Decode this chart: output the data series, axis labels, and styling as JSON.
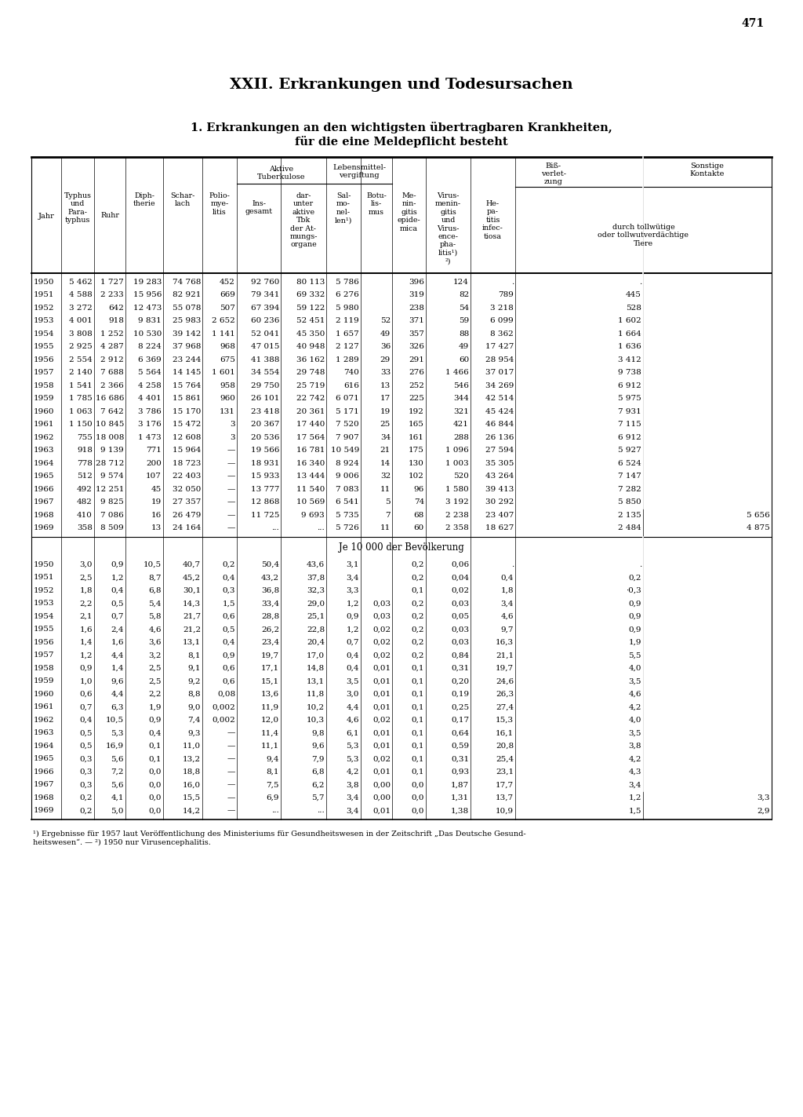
{
  "page_number": "471",
  "main_title": "XXII. Erkrankungen und Todesursachen",
  "subtitle1": "1. Erkrankungen an den wichtigsten übertragbaren Krankheiten,",
  "subtitle2": "für die eine Meldepflicht besteht",
  "data_abs": [
    [
      "1950",
      "5 462",
      "1 727",
      "19 283",
      "74 768",
      "452",
      "92 760",
      "80 113",
      "5 786",
      "",
      "396",
      "124",
      ".",
      ".",
      ""
    ],
    [
      "1951",
      "4 588",
      "2 233",
      "15 956",
      "82 921",
      "669",
      "79 341",
      "69 332",
      "6 276",
      "",
      "319",
      "82",
      "789",
      "445",
      ""
    ],
    [
      "1952",
      "3 272",
      "642",
      "12 473",
      "55 078",
      "507",
      "67 394",
      "59 122",
      "5 980",
      "",
      "238",
      "54",
      "3 218",
      "528",
      ""
    ],
    [
      "1953",
      "4 001",
      "918",
      "9 831",
      "25 983",
      "2 652",
      "60 236",
      "52 451",
      "2 119",
      "52",
      "371",
      "59",
      "6 099",
      "1 602",
      ""
    ],
    [
      "1954",
      "3 808",
      "1 252",
      "10 530",
      "39 142",
      "1 141",
      "52 041",
      "45 350",
      "1 657",
      "49",
      "357",
      "88",
      "8 362",
      "1 664",
      ""
    ],
    [
      "1955",
      "2 925",
      "4 287",
      "8 224",
      "37 968",
      "968",
      "47 015",
      "40 948",
      "2 127",
      "36",
      "326",
      "49",
      "17 427",
      "1 636",
      ""
    ],
    [
      "1956",
      "2 554",
      "2 912",
      "6 369",
      "23 244",
      "675",
      "41 388",
      "36 162",
      "1 289",
      "29",
      "291",
      "60",
      "28 954",
      "3 412",
      ""
    ],
    [
      "1957",
      "2 140",
      "7 688",
      "5 564",
      "14 145",
      "1 601",
      "34 554",
      "29 748",
      "740",
      "33",
      "276",
      "1 466",
      "37 017",
      "9 738",
      ""
    ],
    [
      "1958",
      "1 541",
      "2 366",
      "4 258",
      "15 764",
      "958",
      "29 750",
      "25 719",
      "616",
      "13",
      "252",
      "546",
      "34 269",
      "6 912",
      ""
    ],
    [
      "1959",
      "1 785",
      "16 686",
      "4 401",
      "15 861",
      "960",
      "26 101",
      "22 742",
      "6 071",
      "17",
      "225",
      "344",
      "42 514",
      "5 975",
      ""
    ],
    [
      "1960",
      "1 063",
      "7 642",
      "3 786",
      "15 170",
      "131",
      "23 418",
      "20 361",
      "5 171",
      "19",
      "192",
      "321",
      "45 424",
      "7 931",
      ""
    ],
    [
      "1961",
      "1 150",
      "10 845",
      "3 176",
      "15 472",
      "3",
      "20 367",
      "17 440",
      "7 520",
      "25",
      "165",
      "421",
      "46 844",
      "7 115",
      ""
    ],
    [
      "1962",
      "755",
      "18 008",
      "1 473",
      "12 608",
      "3",
      "20 536",
      "17 564",
      "7 907",
      "34",
      "161",
      "288",
      "26 136",
      "6 912",
      ""
    ],
    [
      "1963",
      "918",
      "9 139",
      "771",
      "15 964",
      "—",
      "19 566",
      "16 781",
      "10 549",
      "21",
      "175",
      "1 096",
      "27 594",
      "5 927",
      ""
    ],
    [
      "1964",
      "778",
      "28 712",
      "200",
      "18 723",
      "—",
      "18 931",
      "16 340",
      "8 924",
      "14",
      "130",
      "1 003",
      "35 305",
      "6 524",
      ""
    ],
    [
      "1965",
      "512",
      "9 574",
      "107",
      "22 403",
      "—",
      "15 933",
      "13 444",
      "9 006",
      "32",
      "102",
      "520",
      "43 264",
      "7 147",
      ""
    ],
    [
      "1966",
      "492",
      "12 251",
      "45",
      "32 050",
      "—",
      "13 777",
      "11 540",
      "7 083",
      "11",
      "96",
      "1 580",
      "39 413",
      "7 282",
      ""
    ],
    [
      "1967",
      "482",
      "9 825",
      "19",
      "27 357",
      "—",
      "12 868",
      "10 569",
      "6 541",
      "5",
      "74",
      "3 192",
      "30 292",
      "5 850",
      ""
    ],
    [
      "1968",
      "410",
      "7 086",
      "16",
      "26 479",
      "—",
      "11 725",
      "9 693",
      "5 735",
      "7",
      "68",
      "2 238",
      "23 407",
      "2 135",
      "5 656"
    ],
    [
      "1969",
      "358",
      "8 509",
      "13",
      "24 164",
      "—",
      "...",
      "...",
      "5 726",
      "11",
      "60",
      "2 358",
      "18 627",
      "2 484",
      "4 875"
    ]
  ],
  "data_per10000": [
    [
      "1950",
      "3,0",
      "0,9",
      "10,5",
      "40,7",
      "0,2",
      "50,4",
      "43,6",
      "3,1",
      "",
      "0,2",
      "0,06",
      ".",
      ".",
      ""
    ],
    [
      "1951",
      "2,5",
      "1,2",
      "8,7",
      "45,2",
      "0,4",
      "43,2",
      "37,8",
      "3,4",
      "",
      "0,2",
      "0,04",
      "0,4",
      "0,2",
      ""
    ],
    [
      "1952",
      "1,8",
      "0,4",
      "6,8",
      "30,1",
      "0,3",
      "36,8",
      "32,3",
      "3,3",
      "",
      "0,1",
      "0,02",
      "1,8",
      "·0,3",
      ""
    ],
    [
      "1953",
      "2,2",
      "0,5",
      "5,4",
      "14,3",
      "1,5",
      "33,4",
      "29,0",
      "1,2",
      "0,03",
      "0,2",
      "0,03",
      "3,4",
      "0,9",
      ""
    ],
    [
      "1954",
      "2,1",
      "0,7",
      "5,8",
      "21,7",
      "0,6",
      "28,8",
      "25,1",
      "0,9",
      "0,03",
      "0,2",
      "0,05",
      "4,6",
      "0,9",
      ""
    ],
    [
      "1955",
      "1,6",
      "2,4",
      "4,6",
      "21,2",
      "0,5",
      "26,2",
      "22,8",
      "1,2",
      "0,02",
      "0,2",
      "0,03",
      "9,7",
      "0,9",
      ""
    ],
    [
      "1956",
      "1,4",
      "1,6",
      "3,6",
      "13,1",
      "0,4",
      "23,4",
      "20,4",
      "0,7",
      "0,02",
      "0,2",
      "0,03",
      "16,3",
      "1,9",
      ""
    ],
    [
      "1957",
      "1,2",
      "4,4",
      "3,2",
      "8,1",
      "0,9",
      "19,7",
      "17,0",
      "0,4",
      "0,02",
      "0,2",
      "0,84",
      "21,1",
      "5,5",
      ""
    ],
    [
      "1958",
      "0,9",
      "1,4",
      "2,5",
      "9,1",
      "0,6",
      "17,1",
      "14,8",
      "0,4",
      "0,01",
      "0,1",
      "0,31",
      "19,7",
      "4,0",
      ""
    ],
    [
      "1959",
      "1,0",
      "9,6",
      "2,5",
      "9,2",
      "0,6",
      "15,1",
      "13,1",
      "3,5",
      "0,01",
      "0,1",
      "0,20",
      "24,6",
      "3,5",
      ""
    ],
    [
      "1960",
      "0,6",
      "4,4",
      "2,2",
      "8,8",
      "0,08",
      "13,6",
      "11,8",
      "3,0",
      "0,01",
      "0,1",
      "0,19",
      "26,3",
      "4,6",
      ""
    ],
    [
      "1961",
      "0,7",
      "6,3",
      "1,9",
      "9,0",
      "0,002",
      "11,9",
      "10,2",
      "4,4",
      "0,01",
      "0,1",
      "0,25",
      "27,4",
      "4,2",
      ""
    ],
    [
      "1962",
      "0,4",
      "10,5",
      "0,9",
      "7,4",
      "0,002",
      "12,0",
      "10,3",
      "4,6",
      "0,02",
      "0,1",
      "0,17",
      "15,3",
      "4,0",
      ""
    ],
    [
      "1963",
      "0,5",
      "5,3",
      "0,4",
      "9,3",
      "—",
      "11,4",
      "9,8",
      "6,1",
      "0,01",
      "0,1",
      "0,64",
      "16,1",
      "3,5",
      ""
    ],
    [
      "1964",
      "0,5",
      "16,9",
      "0,1",
      "11,0",
      "—",
      "11,1",
      "9,6",
      "5,3",
      "0,01",
      "0,1",
      "0,59",
      "20,8",
      "3,8",
      ""
    ],
    [
      "1965",
      "0,3",
      "5,6",
      "0,1",
      "13,2",
      "—",
      "9,4",
      "7,9",
      "5,3",
      "0,02",
      "0,1",
      "0,31",
      "25,4",
      "4,2",
      ""
    ],
    [
      "1966",
      "0,3",
      "7,2",
      "0,0",
      "18,8",
      "—",
      "8,1",
      "6,8",
      "4,2",
      "0,01",
      "0,1",
      "0,93",
      "23,1",
      "4,3",
      ""
    ],
    [
      "1967",
      "0,3",
      "5,6",
      "0,0",
      "16,0",
      "—",
      "7,5",
      "6,2",
      "3,8",
      "0,00",
      "0,0",
      "1,87",
      "17,7",
      "3,4",
      ""
    ],
    [
      "1968",
      "0,2",
      "4,1",
      "0,0",
      "15,5",
      "—",
      "6,9",
      "5,7",
      "3,4",
      "0,00",
      "0,0",
      "1,31",
      "13,7",
      "1,2",
      "3,3"
    ],
    [
      "1969",
      "0,2",
      "5,0",
      "0,0",
      "14,2",
      "—",
      "...",
      "...",
      "3,4",
      "0,01",
      "0,0",
      "1,38",
      "10,9",
      "1,5",
      "2,9"
    ]
  ],
  "footnote1": "¹) Ergebnisse für 1957 laut Veröffentlichung des Ministeriums für Gesundheitswesen in der Zeitschrift „Das Deutsche Gesund-",
  "footnote2": "heitswesen“. — ²) 1950 nur Virusencephalitis."
}
